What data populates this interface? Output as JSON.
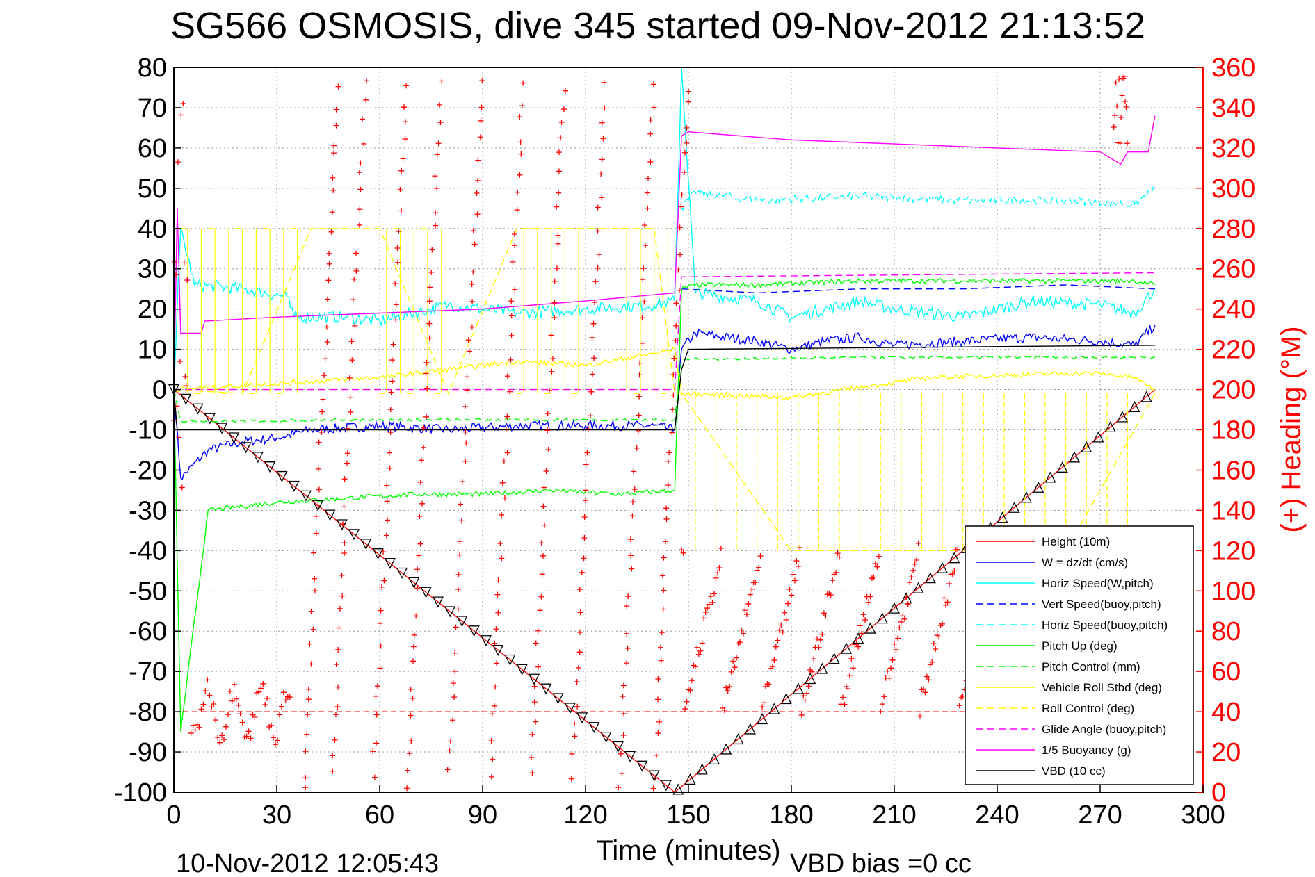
{
  "chart_data": {
    "type": "line",
    "title": "SG566 OSMOSIS, dive 345 started 09-Nov-2012 21:13:52",
    "xlabel": "Time (minutes)",
    "ylabel": "",
    "y2label": "(+) Heading (°M)",
    "footer_left": "10-Nov-2012 12:05:43",
    "footer_right": "VBD bias =0 cc",
    "xlim": [
      0,
      300
    ],
    "ylim": [
      -100,
      80
    ],
    "y2lim": [
      0,
      360
    ],
    "xticks": [
      "0",
      "30",
      "60",
      "90",
      "120",
      "150",
      "180",
      "210",
      "240",
      "270",
      "300"
    ],
    "yticks": [
      "80",
      "70",
      "60",
      "50",
      "40",
      "30",
      "20",
      "10",
      "0",
      "-10",
      "-20",
      "-30",
      "-40",
      "-50",
      "-60",
      "-70",
      "-80",
      "-90",
      "-100"
    ],
    "y2ticks": [
      "360",
      "340",
      "320",
      "300",
      "280",
      "260",
      "240",
      "220",
      "200",
      "180",
      "160",
      "140",
      "120",
      "100",
      "80",
      "60",
      "40",
      "20",
      "0"
    ],
    "grid": true,
    "legend_position": "bottom-right",
    "colors": {
      "red": "#ff0000",
      "blue": "#0000ff",
      "cyan": "#00ffff",
      "green": "#00ff00",
      "yellow": "#ffff00",
      "magenta": "#ff00ff",
      "black": "#000000"
    },
    "series": [
      {
        "name": "Height (10m)",
        "color": "#ff0000",
        "dash": false,
        "x": [
          0,
          146,
          286
        ],
        "y": [
          0,
          -100,
          0
        ]
      },
      {
        "name": "W = dz/dt (cm/s)",
        "color": "#0000ff",
        "dash": false,
        "x": [
          0,
          2,
          10,
          20,
          30,
          40,
          60,
          80,
          100,
          120,
          140,
          146,
          148,
          152,
          170,
          180,
          190,
          200,
          210,
          230,
          250,
          270,
          280,
          286
        ],
        "y": [
          0,
          -22,
          -15,
          -13,
          -12,
          -10,
          -9,
          -10,
          -9,
          -9,
          -9,
          -10,
          10,
          14,
          12,
          10,
          12,
          13,
          11,
          12,
          13,
          12,
          11,
          16
        ]
      },
      {
        "name": "Horiz Speed(W,pitch)",
        "color": "#00ffff",
        "dash": false,
        "x": [
          0,
          2,
          6,
          20,
          33,
          35,
          50,
          60,
          80,
          100,
          120,
          140,
          146,
          148,
          152,
          170,
          180,
          200,
          210,
          230,
          250,
          270,
          280,
          286
        ],
        "y": [
          0,
          40,
          26,
          25,
          23,
          18,
          18,
          17,
          21,
          19,
          20,
          21,
          22,
          80,
          24,
          22,
          18,
          22,
          20,
          18,
          22,
          21,
          19,
          25
        ]
      },
      {
        "name": "Vert Speed(buoy,pitch)",
        "color": "#0000ff",
        "dash": true,
        "x": [
          148,
          170,
          200,
          230,
          260,
          286
        ],
        "y": [
          25,
          24,
          25,
          25,
          26,
          25
        ]
      },
      {
        "name": "Horiz Speed(buoy,pitch)",
        "color": "#00ffff",
        "dash": true,
        "x": [
          148,
          152,
          170,
          200,
          230,
          260,
          280,
          286
        ],
        "y": [
          45,
          49,
          47,
          48,
          47,
          47,
          46,
          50
        ]
      },
      {
        "name": "Pitch Up (deg)",
        "color": "#00ff00",
        "dash": false,
        "x": [
          0,
          2,
          10,
          20,
          30,
          50,
          70,
          90,
          110,
          130,
          146,
          148,
          152,
          170,
          200,
          230,
          260,
          280,
          286
        ],
        "y": [
          0,
          -85,
          -30,
          -29,
          -28,
          -27,
          -26,
          -26,
          -25,
          -26,
          -25,
          25,
          26,
          26,
          27,
          27,
          27,
          27,
          26
        ]
      },
      {
        "name": "Pitch Control (mm)",
        "color": "#00ff00",
        "dash": true,
        "x": [
          0,
          2,
          50,
          100,
          146,
          148,
          200,
          250,
          286
        ],
        "y": [
          0,
          -8,
          -7.5,
          -7.5,
          -7.5,
          7.5,
          8,
          8,
          8
        ]
      },
      {
        "name": "Vehicle Roll Stbd (deg)",
        "color": "#ffff00",
        "dash": false,
        "x": [
          0,
          40,
          60,
          80,
          100,
          120,
          140,
          146,
          148,
          180,
          220,
          260,
          270,
          280,
          286
        ],
        "y": [
          0,
          2,
          3,
          5,
          7,
          6,
          9,
          10,
          -1,
          -2,
          3,
          4,
          4,
          3,
          0
        ]
      },
      {
        "name": "Roll Control (deg)",
        "color": "#ffff00",
        "dash": true,
        "x": [
          0,
          20,
          40,
          60,
          80,
          100,
          120,
          140,
          146,
          148,
          180,
          220,
          260,
          286
        ],
        "y": [
          0,
          -1,
          40,
          40,
          -1,
          40,
          40,
          40,
          -1,
          -1,
          -40,
          -40,
          -40,
          -1
        ]
      },
      {
        "name": "Glide Angle (buoy,pitch)",
        "color": "#ff00ff",
        "dash": true,
        "x": [
          0,
          146,
          148,
          286
        ],
        "y": [
          0,
          0,
          28,
          29
        ]
      },
      {
        "name": "1/5 Buoyancy (g)",
        "color": "#ff00ff",
        "dash": false,
        "x": [
          0,
          1,
          2,
          8,
          9,
          30,
          60,
          90,
          120,
          146,
          148,
          150,
          180,
          210,
          240,
          270,
          276,
          278,
          284,
          286
        ],
        "y": [
          0,
          45,
          14,
          14,
          17,
          18,
          19,
          20,
          22,
          24,
          63,
          64,
          62,
          61,
          60,
          59,
          56,
          59,
          59,
          68
        ]
      },
      {
        "name": "VBD (10 cc)",
        "color": "#000000",
        "dash": false,
        "x": [
          0,
          1,
          2,
          146,
          148,
          150,
          286
        ],
        "y": [
          0,
          -10,
          -10,
          -10,
          5,
          10,
          11
        ]
      }
    ],
    "heading": {
      "name": "(+) Heading",
      "color": "#ff0000",
      "dive_phase_center": 40,
      "dive_phase_range": [
        0,
        146
      ],
      "climb_phase_range": [
        148,
        286
      ],
      "dashed_reference": 40
    }
  }
}
